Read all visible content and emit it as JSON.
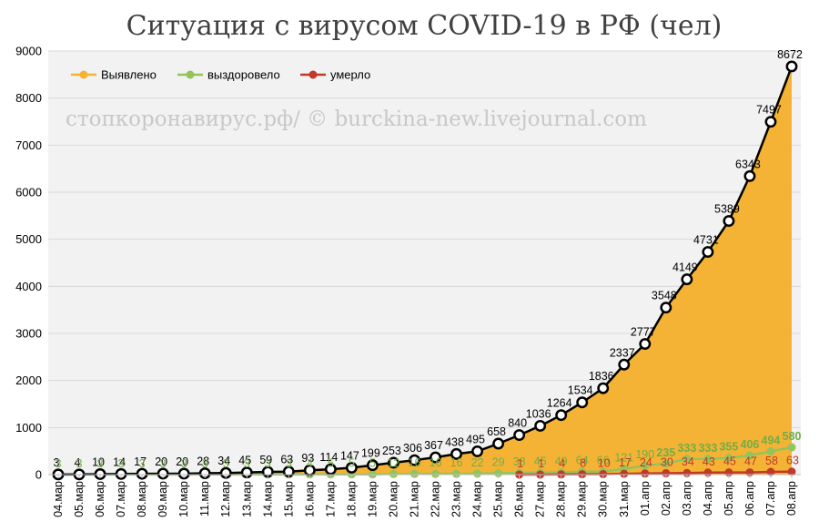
{
  "chart_data": {
    "type": "area",
    "title": "Ситуация с вирусом COVID-19 в РФ (чел)",
    "watermark": "стопкоронавирус.рф/ © burckina-new.livejournal.com",
    "ylim": [
      0,
      9000
    ],
    "yticks": [
      "0",
      "1000",
      "2000",
      "3000",
      "4000",
      "5000",
      "6000",
      "7000",
      "8000",
      "9000"
    ],
    "grid": true,
    "legend_position": "top-left",
    "categories": [
      "04.мар",
      "05.мар",
      "06.мар",
      "07.мар",
      "08.мар",
      "09.мар",
      "10.мар",
      "11.мар",
      "12.мар",
      "13.мар",
      "14.мар",
      "15.мар",
      "16.мар",
      "17.мар",
      "18.мар",
      "19.мар",
      "20.мар",
      "21.мар",
      "22.мар",
      "23.мар",
      "24.мар",
      "25.мар",
      "26.мар",
      "27.мар",
      "28.мар",
      "29.мар",
      "30.мар",
      "31.мар",
      "01.апр",
      "02.апр",
      "03.апр",
      "04.апр",
      "05.апр",
      "06.апр",
      "07.апр",
      "08.апр"
    ],
    "series": [
      {
        "name": "Выявлено",
        "color": "#f5b335",
        "values": [
          3,
          4,
          10,
          14,
          17,
          20,
          20,
          28,
          34,
          45,
          59,
          63,
          93,
          114,
          147,
          199,
          253,
          306,
          367,
          438,
          495,
          658,
          840,
          1036,
          1264,
          1534,
          1836,
          2337,
          2777,
          3548,
          4149,
          4731,
          5389,
          6343,
          7497,
          8672
        ]
      },
      {
        "name": "выздоровело",
        "color": "#93c35b",
        "values": [
          3,
          3,
          3,
          3,
          3,
          3,
          3,
          3,
          3,
          3,
          3,
          3,
          4,
          5,
          5,
          5,
          12,
          16,
          16,
          16,
          22,
          29,
          38,
          45,
          49,
          64,
          66,
          121,
          190,
          235,
          333,
          333,
          355,
          406,
          494,
          580
        ]
      },
      {
        "name": "умерло",
        "color": "#c0392b",
        "values": [
          null,
          null,
          null,
          null,
          null,
          null,
          null,
          null,
          null,
          null,
          null,
          null,
          null,
          null,
          null,
          null,
          null,
          null,
          null,
          null,
          null,
          null,
          1,
          1,
          4,
          8,
          10,
          17,
          24,
          30,
          34,
          43,
          45,
          47,
          58,
          63
        ]
      }
    ]
  }
}
